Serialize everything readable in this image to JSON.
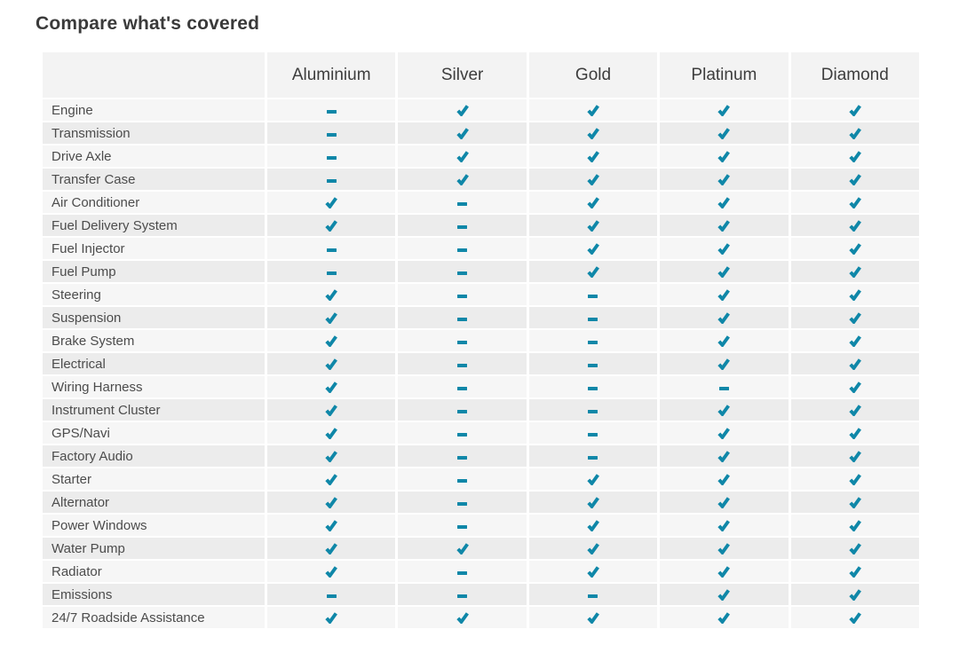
{
  "page": {
    "title": "Compare what's covered"
  },
  "table": {
    "plans": [
      "Aluminium",
      "Silver",
      "Gold",
      "Platinum",
      "Diamond"
    ],
    "legend": {
      "covered": "check-icon",
      "not_covered": "dash-icon"
    },
    "rows": [
      {
        "label": "Engine",
        "covered": [
          false,
          true,
          true,
          true,
          true
        ]
      },
      {
        "label": "Transmission",
        "covered": [
          false,
          true,
          true,
          true,
          true
        ]
      },
      {
        "label": "Drive Axle",
        "covered": [
          false,
          true,
          true,
          true,
          true
        ]
      },
      {
        "label": "Transfer Case",
        "covered": [
          false,
          true,
          true,
          true,
          true
        ]
      },
      {
        "label": "Air Conditioner",
        "covered": [
          true,
          false,
          true,
          true,
          true
        ]
      },
      {
        "label": "Fuel Delivery System",
        "covered": [
          true,
          false,
          true,
          true,
          true
        ]
      },
      {
        "label": "Fuel Injector",
        "covered": [
          false,
          false,
          true,
          true,
          true
        ]
      },
      {
        "label": "Fuel Pump",
        "covered": [
          false,
          false,
          true,
          true,
          true
        ]
      },
      {
        "label": "Steering",
        "covered": [
          true,
          false,
          false,
          true,
          true
        ]
      },
      {
        "label": "Suspension",
        "covered": [
          true,
          false,
          false,
          true,
          true
        ]
      },
      {
        "label": "Brake System",
        "covered": [
          true,
          false,
          false,
          true,
          true
        ]
      },
      {
        "label": "Electrical",
        "covered": [
          true,
          false,
          false,
          true,
          true
        ]
      },
      {
        "label": "Wiring Harness",
        "covered": [
          true,
          false,
          false,
          false,
          true
        ]
      },
      {
        "label": "Instrument Cluster",
        "covered": [
          true,
          false,
          false,
          true,
          true
        ]
      },
      {
        "label": "GPS/Navi",
        "covered": [
          true,
          false,
          false,
          true,
          true
        ]
      },
      {
        "label": "Factory Audio",
        "covered": [
          true,
          false,
          false,
          true,
          true
        ]
      },
      {
        "label": "Starter",
        "covered": [
          true,
          false,
          true,
          true,
          true
        ]
      },
      {
        "label": "Alternator",
        "covered": [
          true,
          false,
          true,
          true,
          true
        ]
      },
      {
        "label": "Power Windows",
        "covered": [
          true,
          false,
          true,
          true,
          true
        ]
      },
      {
        "label": "Water Pump",
        "covered": [
          true,
          true,
          true,
          true,
          true
        ]
      },
      {
        "label": "Radiator",
        "covered": [
          true,
          false,
          true,
          true,
          true
        ]
      },
      {
        "label": "Emissions",
        "covered": [
          false,
          false,
          false,
          true,
          true
        ]
      },
      {
        "label": "24/7 Roadside Assistance",
        "covered": [
          true,
          true,
          true,
          true,
          true
        ]
      }
    ]
  },
  "colors": {
    "accent_teal": "#0f87a8",
    "row_light": "#f6f6f6",
    "row_dark": "#ececec",
    "header_bg": "#f3f3f3",
    "title_text": "#3a3a3a",
    "header_text": "#3d3d3d",
    "label_text": "#4c4c4c",
    "page_bg": "#ffffff"
  }
}
